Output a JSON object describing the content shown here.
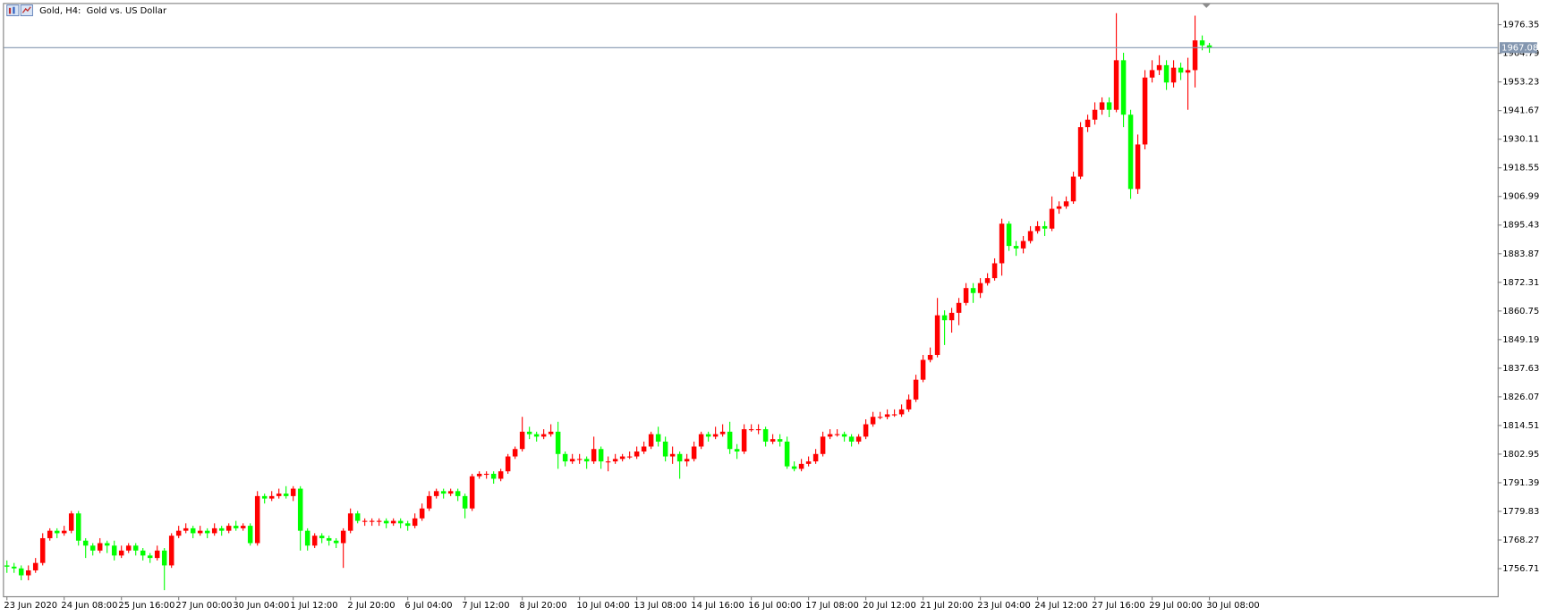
{
  "chart_data": {
    "type": "candlestick",
    "title": "Gold, H4:  Gold vs. US Dollar",
    "up_color": "#ff0000",
    "down_color": "#00ff00",
    "current_price": 1967.08,
    "current_price_color": "#8497b0",
    "ylim": [
      1745.55,
      1984.72
    ],
    "yticks": [
      1756.71,
      1768.27,
      1779.83,
      1791.39,
      1802.95,
      1814.51,
      1826.07,
      1837.63,
      1849.19,
      1860.75,
      1872.31,
      1883.87,
      1895.43,
      1906.99,
      1918.55,
      1930.11,
      1941.67,
      1953.23,
      1964.79,
      1976.35
    ],
    "categories": [
      "23 Jun 2020",
      null,
      null,
      null,
      null,
      null,
      null,
      null,
      "24 Jun 08:00",
      null,
      null,
      null,
      null,
      null,
      null,
      null,
      "25 Jun 16:00",
      null,
      null,
      null,
      null,
      null,
      null,
      null,
      "27 Jun 00:00",
      null,
      null,
      null,
      null,
      null,
      null,
      null,
      "30 Jun 04:00",
      null,
      null,
      null,
      null,
      null,
      null,
      null,
      "1 Jul 12:00",
      null,
      null,
      null,
      null,
      null,
      null,
      null,
      "2 Jul 20:00",
      null,
      null,
      null,
      null,
      null,
      null,
      null,
      "6 Jul 04:00",
      null,
      null,
      null,
      null,
      null,
      null,
      null,
      "7 Jul 12:00",
      null,
      null,
      null,
      null,
      null,
      null,
      null,
      "8 Jul 20:00",
      null,
      null,
      null,
      null,
      null,
      null,
      null,
      "10 Jul 04:00",
      null,
      null,
      null,
      null,
      null,
      null,
      null,
      "13 Jul 08:00",
      null,
      null,
      null,
      null,
      null,
      null,
      null,
      "14 Jul 16:00",
      null,
      null,
      null,
      null,
      null,
      null,
      null,
      "16 Jul 00:00",
      null,
      null,
      null,
      null,
      null,
      null,
      null,
      "17 Jul 08:00",
      null,
      null,
      null,
      null,
      null,
      null,
      null,
      "20 Jul 12:00",
      null,
      null,
      null,
      null,
      null,
      null,
      null,
      "21 Jul 20:00",
      null,
      null,
      null,
      null,
      null,
      null,
      null,
      "23 Jul 04:00",
      null,
      null,
      null,
      null,
      null,
      null,
      null,
      "24 Jul 12:00",
      null,
      null,
      null,
      null,
      null,
      null,
      null,
      "27 Jul 16:00",
      null,
      null,
      null,
      null,
      null,
      null,
      null,
      "29 Jul 00:00",
      null,
      null,
      null,
      null,
      null,
      null,
      null,
      "30 Jul 08:00"
    ],
    "candles": [
      [
        1758,
        1760,
        1755,
        1757.5
      ],
      [
        1757.5,
        1759,
        1755,
        1756.8
      ],
      [
        1756.8,
        1758,
        1752,
        1754
      ],
      [
        1754,
        1758,
        1752,
        1756
      ],
      [
        1756,
        1761,
        1755,
        1759
      ],
      [
        1759,
        1771,
        1758,
        1769
      ],
      [
        1769,
        1773,
        1768,
        1772
      ],
      [
        1772,
        1773,
        1769,
        1771
      ],
      [
        1771,
        1774,
        1770,
        1772
      ],
      [
        1772,
        1780,
        1771,
        1779
      ],
      [
        1779,
        1780,
        1766,
        1768
      ],
      [
        1768,
        1769,
        1761,
        1766
      ],
      [
        1766,
        1767,
        1762,
        1764
      ],
      [
        1764,
        1769,
        1763,
        1767
      ],
      [
        1767,
        1768,
        1763,
        1766
      ],
      [
        1766,
        1768,
        1760,
        1762
      ],
      [
        1762,
        1766,
        1761,
        1764
      ],
      [
        1764,
        1767,
        1763,
        1766
      ],
      [
        1766,
        1767,
        1762,
        1764
      ],
      [
        1764,
        1765,
        1760,
        1762
      ],
      [
        1762,
        1763,
        1759,
        1761
      ],
      [
        1761,
        1766,
        1760,
        1764
      ],
      [
        1764,
        1765,
        1748,
        1758
      ],
      [
        1758,
        1771,
        1757,
        1770
      ],
      [
        1770,
        1774,
        1769,
        1772
      ],
      [
        1772,
        1775,
        1771,
        1773
      ],
      [
        1773,
        1774,
        1769,
        1771
      ],
      [
        1771,
        1774,
        1770,
        1772
      ],
      [
        1772,
        1773,
        1769,
        1771
      ],
      [
        1771,
        1775,
        1770,
        1773
      ],
      [
        1773,
        1774,
        1770,
        1772
      ],
      [
        1772,
        1775,
        1771,
        1774
      ],
      [
        1774,
        1776,
        1772,
        1773
      ],
      [
        1773,
        1775,
        1772,
        1774
      ],
      [
        1774,
        1775,
        1766,
        1767
      ],
      [
        1767,
        1788,
        1766,
        1786
      ],
      [
        1786,
        1787,
        1783,
        1785
      ],
      [
        1785,
        1788,
        1784,
        1786
      ],
      [
        1786,
        1789,
        1785,
        1787
      ],
      [
        1787,
        1790,
        1785,
        1786
      ],
      [
        1786,
        1790,
        1784,
        1789
      ],
      [
        1789,
        1790,
        1764,
        1772
      ],
      [
        1772,
        1773,
        1764,
        1766
      ],
      [
        1766,
        1771,
        1765,
        1770
      ],
      [
        1770,
        1771,
        1767,
        1769
      ],
      [
        1769,
        1770,
        1766,
        1768
      ],
      [
        1768,
        1769,
        1765,
        1767
      ],
      [
        1767,
        1773,
        1757,
        1772
      ],
      [
        1772,
        1781,
        1771,
        1779
      ],
      [
        1779,
        1780,
        1775,
        1776
      ],
      [
        1776,
        1777,
        1774,
        1776
      ],
      [
        1776,
        1777,
        1774,
        1776
      ],
      [
        1776,
        1777,
        1774,
        1776
      ],
      [
        1776,
        1777,
        1773,
        1775
      ],
      [
        1775,
        1777,
        1774,
        1776
      ],
      [
        1776,
        1777,
        1773,
        1775
      ],
      [
        1775,
        1776,
        1772,
        1774
      ],
      [
        1774,
        1779,
        1773,
        1777
      ],
      [
        1777,
        1783,
        1776,
        1781
      ],
      [
        1781,
        1788,
        1780,
        1786
      ],
      [
        1786,
        1789,
        1785,
        1788
      ],
      [
        1788,
        1789,
        1785,
        1787
      ],
      [
        1787,
        1789,
        1786,
        1788
      ],
      [
        1788,
        1789,
        1784,
        1786
      ],
      [
        1786,
        1787,
        1777,
        1781
      ],
      [
        1781,
        1795,
        1780,
        1794
      ],
      [
        1794,
        1796,
        1793,
        1795
      ],
      [
        1795,
        1796,
        1793,
        1795
      ],
      [
        1795,
        1796,
        1791,
        1793
      ],
      [
        1793,
        1797,
        1792,
        1796
      ],
      [
        1796,
        1803,
        1795,
        1802
      ],
      [
        1802,
        1806,
        1801,
        1805
      ],
      [
        1805,
        1818,
        1804,
        1812
      ],
      [
        1812,
        1814,
        1809,
        1811
      ],
      [
        1811,
        1812,
        1808,
        1810
      ],
      [
        1810,
        1813,
        1809,
        1811
      ],
      [
        1811,
        1815,
        1810,
        1812
      ],
      [
        1812,
        1816,
        1797,
        1803
      ],
      [
        1803,
        1804,
        1798,
        1800
      ],
      [
        1800,
        1803,
        1799,
        1801
      ],
      [
        1801,
        1803,
        1799,
        1801
      ],
      [
        1801,
        1802,
        1797,
        1800
      ],
      [
        1800,
        1810,
        1799,
        1805
      ],
      [
        1805,
        1806,
        1797,
        1800
      ],
      [
        1800,
        1802,
        1796,
        1800
      ],
      [
        1800,
        1803,
        1799,
        1801
      ],
      [
        1801,
        1803,
        1800,
        1802
      ],
      [
        1802,
        1804,
        1801,
        1802
      ],
      [
        1802,
        1806,
        1801,
        1804
      ],
      [
        1804,
        1808,
        1803,
        1806
      ],
      [
        1806,
        1812,
        1805,
        1811
      ],
      [
        1811,
        1814,
        1806,
        1808
      ],
      [
        1808,
        1810,
        1800,
        1802
      ],
      [
        1802,
        1806,
        1799,
        1803
      ],
      [
        1803,
        1804,
        1793,
        1800
      ],
      [
        1800,
        1803,
        1798,
        1801
      ],
      [
        1801,
        1808,
        1800,
        1806
      ],
      [
        1806,
        1812,
        1805,
        1811
      ],
      [
        1811,
        1812,
        1808,
        1810
      ],
      [
        1810,
        1814,
        1809,
        1811
      ],
      [
        1811,
        1815,
        1810,
        1812
      ],
      [
        1812,
        1816,
        1803,
        1805
      ],
      [
        1805,
        1807,
        1801,
        1804
      ],
      [
        1804,
        1815,
        1803,
        1813
      ],
      [
        1813,
        1815,
        1812,
        1813
      ],
      [
        1813,
        1815,
        1811,
        1813
      ],
      [
        1813,
        1814,
        1806,
        1808
      ],
      [
        1808,
        1811,
        1807,
        1809
      ],
      [
        1809,
        1811,
        1806,
        1808
      ],
      [
        1808,
        1810,
        1797,
        1798
      ],
      [
        1798,
        1800,
        1796,
        1797
      ],
      [
        1797,
        1801,
        1796,
        1799
      ],
      [
        1799,
        1802,
        1798,
        1800
      ],
      [
        1800,
        1805,
        1799,
        1803
      ],
      [
        1803,
        1812,
        1802,
        1810
      ],
      [
        1810,
        1813,
        1809,
        1811
      ],
      [
        1811,
        1813,
        1810,
        1811
      ],
      [
        1811,
        1812,
        1808,
        1810
      ],
      [
        1810,
        1811,
        1806,
        1808
      ],
      [
        1808,
        1811,
        1807,
        1810
      ],
      [
        1810,
        1817,
        1809,
        1815
      ],
      [
        1815,
        1820,
        1814,
        1818
      ],
      [
        1818,
        1820,
        1817,
        1818
      ],
      [
        1818,
        1821,
        1817,
        1819
      ],
      [
        1819,
        1821,
        1818,
        1819
      ],
      [
        1819,
        1823,
        1818,
        1821
      ],
      [
        1821,
        1827,
        1820,
        1825
      ],
      [
        1825,
        1835,
        1824,
        1833
      ],
      [
        1833,
        1843,
        1832,
        1841
      ],
      [
        1841,
        1846,
        1840,
        1843
      ],
      [
        1843,
        1866,
        1842,
        1859
      ],
      [
        1859,
        1861,
        1847,
        1857
      ],
      [
        1857,
        1862,
        1852,
        1860
      ],
      [
        1860,
        1866,
        1855,
        1864
      ],
      [
        1864,
        1872,
        1863,
        1870
      ],
      [
        1870,
        1872,
        1864,
        1868
      ],
      [
        1868,
        1874,
        1866,
        1872
      ],
      [
        1872,
        1876,
        1871,
        1874
      ],
      [
        1874,
        1882,
        1873,
        1880
      ],
      [
        1880,
        1898,
        1875,
        1896
      ],
      [
        1896,
        1897,
        1885,
        1887
      ],
      [
        1887,
        1889,
        1883,
        1886
      ],
      [
        1886,
        1891,
        1884,
        1889
      ],
      [
        1889,
        1895,
        1888,
        1893
      ],
      [
        1893,
        1897,
        1892,
        1895
      ],
      [
        1895,
        1897,
        1891,
        1894
      ],
      [
        1894,
        1907,
        1893,
        1902
      ],
      [
        1902,
        1905,
        1900,
        1903
      ],
      [
        1903,
        1907,
        1902,
        1905
      ],
      [
        1905,
        1917,
        1904,
        1915
      ],
      [
        1915,
        1937,
        1914,
        1935
      ],
      [
        1935,
        1940,
        1933,
        1938
      ],
      [
        1938,
        1945,
        1936,
        1942
      ],
      [
        1942,
        1947,
        1940,
        1945
      ],
      [
        1945,
        1947,
        1939,
        1942
      ],
      [
        1942,
        1981,
        1941,
        1962
      ],
      [
        1962,
        1965,
        1935,
        1940
      ],
      [
        1940,
        1942,
        1906,
        1910
      ],
      [
        1910,
        1932,
        1908,
        1928
      ],
      [
        1928,
        1958,
        1926,
        1955
      ],
      [
        1955,
        1962,
        1953,
        1958
      ],
      [
        1958,
        1964,
        1956,
        1960
      ],
      [
        1960,
        1962,
        1950,
        1953
      ],
      [
        1953,
        1962,
        1951,
        1959
      ],
      [
        1959,
        1961,
        1954,
        1957
      ],
      [
        1957,
        1963,
        1942,
        1958
      ],
      [
        1958,
        1980,
        1951,
        1970
      ],
      [
        1970,
        1972,
        1966,
        1968
      ],
      [
        1968,
        1969,
        1965,
        1967.08
      ]
    ]
  }
}
